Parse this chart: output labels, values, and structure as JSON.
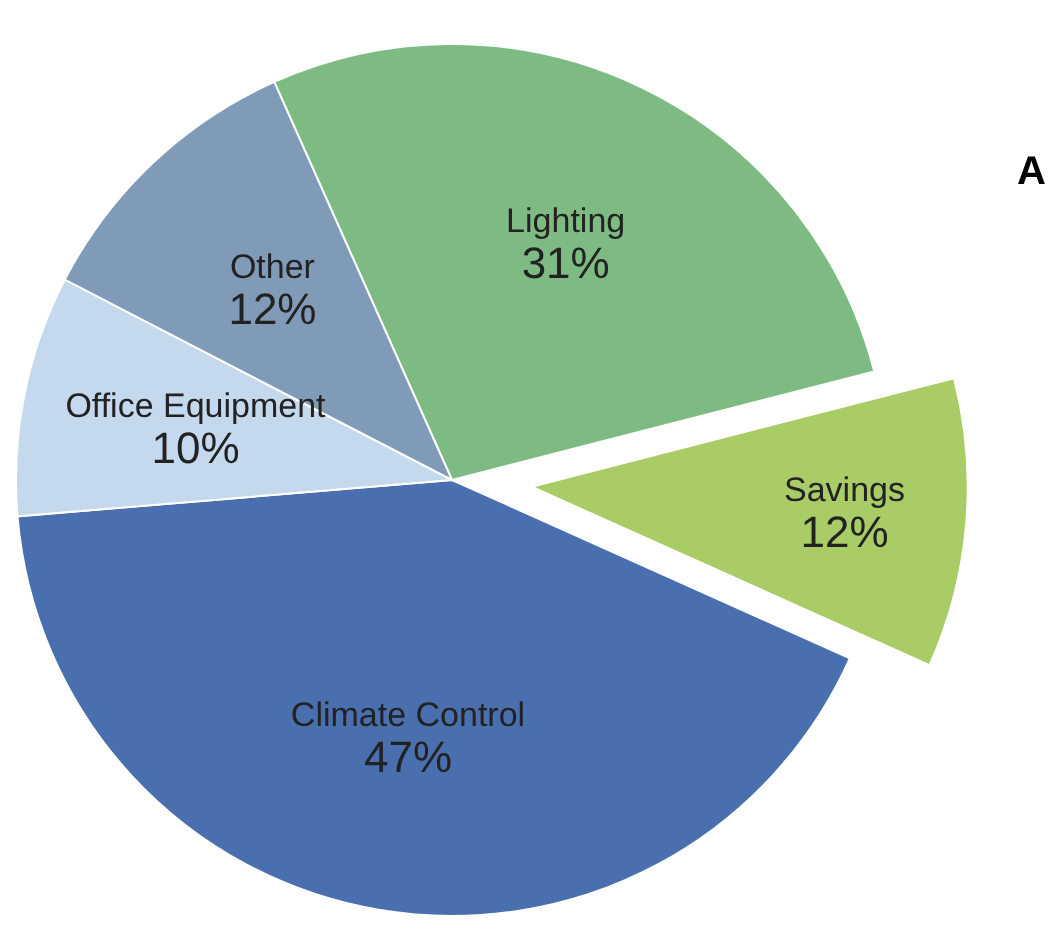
{
  "chart_data": {
    "type": "pie",
    "categories": [
      "Lighting",
      "Savings",
      "Climate Control",
      "Office Equipment",
      "Other"
    ],
    "values": [
      31,
      12,
      47,
      10,
      12
    ],
    "value_labels": [
      "31%",
      "12%",
      "47%",
      "10%",
      "12%"
    ],
    "colors": [
      "#7dbb82",
      "#a9cc66",
      "#4a6fae",
      "#c4d8ee",
      "#7f9bb8"
    ],
    "annotations": [
      "A"
    ]
  }
}
